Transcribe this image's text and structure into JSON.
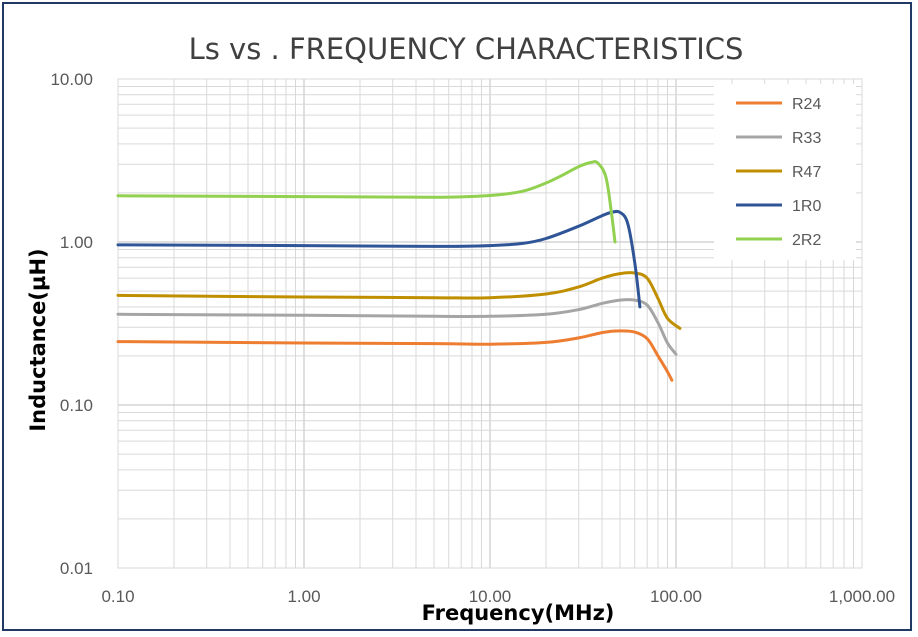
{
  "chart_data": {
    "type": "line",
    "title": "Ls vs . FREQUENCY CHARACTERISTICS",
    "xlabel": "Frequency(MHz)",
    "ylabel": "Inductance(µH)",
    "x_scale": "log",
    "y_scale": "log",
    "xlim": [
      0.1,
      1000
    ],
    "ylim": [
      0.01,
      10
    ],
    "x_ticks": [
      "0.10",
      "1.00",
      "10.00",
      "100.00",
      "1,000.00"
    ],
    "y_ticks": [
      "0.01",
      "0.10",
      "1.00",
      "10.00"
    ],
    "grid": true,
    "legend_position": "top-right",
    "series": [
      {
        "name": "R24",
        "color": "#ed7d31",
        "points": [
          [
            0.1,
            0.245
          ],
          [
            1,
            0.24
          ],
          [
            5,
            0.238
          ],
          [
            10,
            0.236
          ],
          [
            20,
            0.242
          ],
          [
            30,
            0.258
          ],
          [
            40,
            0.278
          ],
          [
            50,
            0.285
          ],
          [
            60,
            0.28
          ],
          [
            70,
            0.255
          ],
          [
            80,
            0.2
          ],
          [
            90,
            0.16
          ],
          [
            95,
            0.142
          ]
        ]
      },
      {
        "name": "R33",
        "color": "#a5a5a5",
        "points": [
          [
            0.1,
            0.36
          ],
          [
            1,
            0.355
          ],
          [
            5,
            0.35
          ],
          [
            10,
            0.35
          ],
          [
            20,
            0.36
          ],
          [
            30,
            0.385
          ],
          [
            40,
            0.42
          ],
          [
            50,
            0.44
          ],
          [
            60,
            0.44
          ],
          [
            70,
            0.41
          ],
          [
            80,
            0.32
          ],
          [
            90,
            0.24
          ],
          [
            100,
            0.205
          ]
        ]
      },
      {
        "name": "R47",
        "color": "#bf8f00",
        "points": [
          [
            0.1,
            0.47
          ],
          [
            1,
            0.46
          ],
          [
            5,
            0.455
          ],
          [
            10,
            0.455
          ],
          [
            20,
            0.48
          ],
          [
            30,
            0.53
          ],
          [
            40,
            0.6
          ],
          [
            50,
            0.64
          ],
          [
            60,
            0.645
          ],
          [
            70,
            0.6
          ],
          [
            80,
            0.45
          ],
          [
            90,
            0.34
          ],
          [
            105,
            0.295
          ]
        ]
      },
      {
        "name": "1R0",
        "color": "#2f5597",
        "points": [
          [
            0.1,
            0.96
          ],
          [
            1,
            0.95
          ],
          [
            5,
            0.94
          ],
          [
            10,
            0.95
          ],
          [
            15,
            0.98
          ],
          [
            20,
            1.05
          ],
          [
            30,
            1.25
          ],
          [
            40,
            1.45
          ],
          [
            45,
            1.52
          ],
          [
            50,
            1.52
          ],
          [
            55,
            1.3
          ],
          [
            60,
            0.75
          ],
          [
            64,
            0.4
          ]
        ]
      },
      {
        "name": "2R2",
        "color": "#92d050",
        "points": [
          [
            0.1,
            1.92
          ],
          [
            1,
            1.9
          ],
          [
            5,
            1.88
          ],
          [
            10,
            1.93
          ],
          [
            15,
            2.05
          ],
          [
            20,
            2.3
          ],
          [
            25,
            2.6
          ],
          [
            30,
            2.9
          ],
          [
            35,
            3.08
          ],
          [
            38,
            3.05
          ],
          [
            42,
            2.5
          ],
          [
            45,
            1.5
          ],
          [
            47,
            1.0
          ]
        ]
      }
    ]
  }
}
